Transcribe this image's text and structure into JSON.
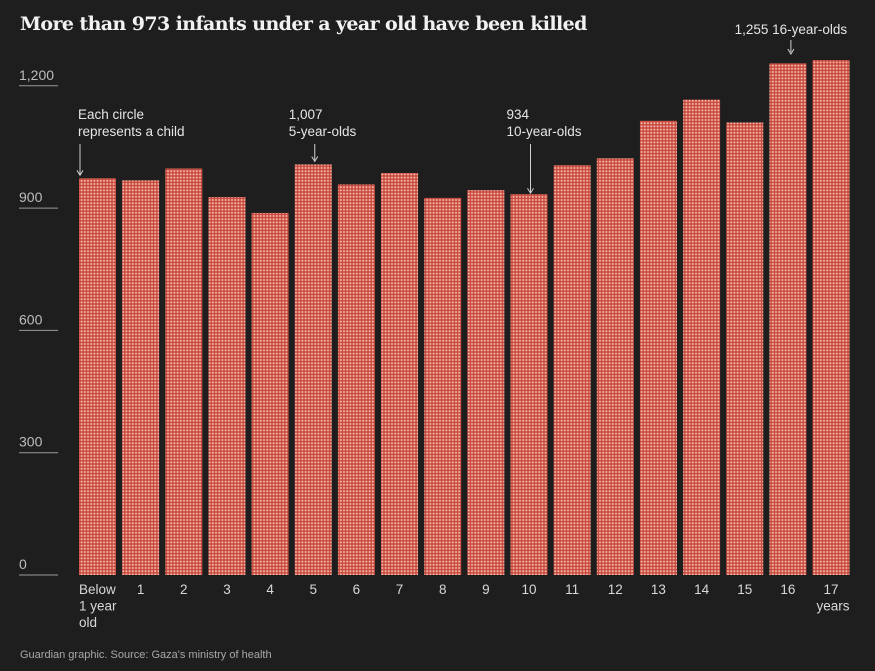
{
  "title": "More than 973 infants under a year old have been killed",
  "source": "Guardian graphic. Source: Gaza's ministry of health",
  "colors": {
    "background": "#1e1e1e",
    "bar": "#d45a4a",
    "dot": "#f0b8ab",
    "axis": "#bdbdbd"
  },
  "chart_data": {
    "type": "bar",
    "title": "More than 973 infants under a year old have been killed",
    "xlabel": "years",
    "ylabel": "",
    "ylim": [
      0,
      1300
    ],
    "yticks": [
      0,
      300,
      600,
      900,
      1200
    ],
    "ytick_labels": [
      "0",
      "300",
      "600",
      "900",
      "1,200"
    ],
    "categories": [
      "Below 1 year old",
      "1",
      "2",
      "3",
      "4",
      "5",
      "6",
      "7",
      "8",
      "9",
      "10",
      "11",
      "12",
      "13",
      "14",
      "15",
      "16",
      "17"
    ],
    "category_label_lines": [
      [
        "Below",
        "1 year",
        "old"
      ],
      [
        "1"
      ],
      [
        "2"
      ],
      [
        "3"
      ],
      [
        "4"
      ],
      [
        "5"
      ],
      [
        "6"
      ],
      [
        "7"
      ],
      [
        "8"
      ],
      [
        "9"
      ],
      [
        "10"
      ],
      [
        "11"
      ],
      [
        "12"
      ],
      [
        "13"
      ],
      [
        "14"
      ],
      [
        "15"
      ],
      [
        "16"
      ],
      [
        "17",
        "years"
      ]
    ],
    "values": [
      973,
      968,
      997,
      927,
      888,
      1007,
      958,
      986,
      925,
      944,
      934,
      1005,
      1022,
      1114,
      1166,
      1110,
      1255,
      1263
    ],
    "unit_note": "Each circle represents a child",
    "annotations": [
      {
        "category_index": 0,
        "lines": [
          "Each circle",
          "represents a child"
        ]
      },
      {
        "category_index": 5,
        "lines": [
          "1,007",
          "5-year-olds"
        ]
      },
      {
        "category_index": 10,
        "lines": [
          "934",
          "10-year-olds"
        ]
      },
      {
        "category_index": 16,
        "lines": [
          "1,255 16-year-olds"
        ]
      }
    ]
  }
}
